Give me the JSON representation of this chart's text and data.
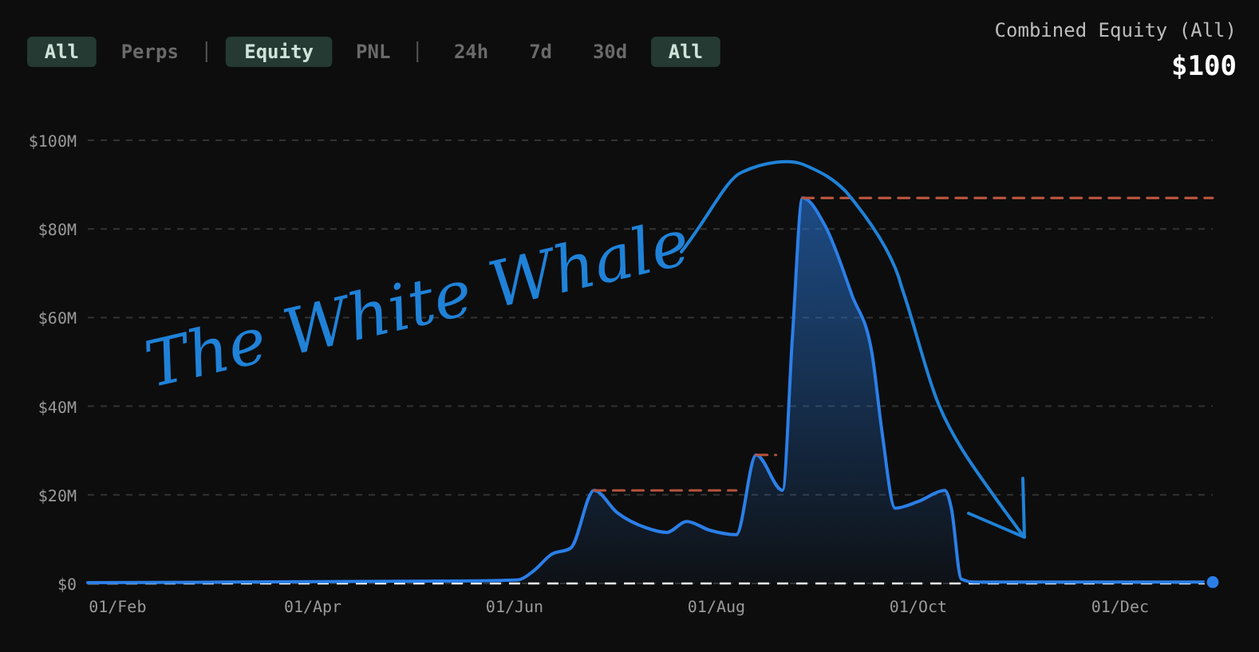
{
  "chart_data": {
    "type": "area",
    "title": "Combined Equity (All)",
    "subtitle": "$100",
    "annotations": [
      "All",
      "Perps",
      "Equity",
      "PNL",
      "24h",
      "7d",
      "30d",
      "All",
      "The White Whale"
    ],
    "xlim": [
      "--01-23",
      "--12-29"
    ],
    "xticks": [
      {
        "value": "--02-01",
        "label": "01/Feb"
      },
      {
        "value": "--04-01",
        "label": "01/Apr"
      },
      {
        "value": "--06-01",
        "label": "01/Jun"
      },
      {
        "value": "--08-01",
        "label": "01/Aug"
      },
      {
        "value": "--10-01",
        "label": "01/Oct"
      },
      {
        "value": "--12-01",
        "label": "01/Dec"
      }
    ],
    "ylim": [
      0,
      100
    ],
    "yticks": [
      {
        "value": 0,
        "label": "$0"
      },
      {
        "value": 20,
        "label": "$20M"
      },
      {
        "value": 40,
        "label": "$40M"
      },
      {
        "value": 60,
        "label": "$60M"
      },
      {
        "value": 80,
        "label": "$80M"
      },
      {
        "value": 100,
        "label": "$100M"
      }
    ],
    "grid": "y",
    "marker": "none",
    "ref_lines": [
      {
        "axis": "y",
        "value": 0,
        "color": "#ffffff",
        "line_style": "dashed"
      }
    ],
    "series": [
      {
        "color": "#2b7fe8",
        "x": [
          "--01-23",
          "--04-03",
          "--05-21",
          "--06-02",
          "--06-07",
          "--06-12",
          "--06-18",
          "--06-25",
          "--07-02",
          "--07-11",
          "--07-17",
          "--07-23",
          "--07-30",
          "--08-07",
          "--08-13",
          "--08-21",
          "--08-24",
          "--08-27",
          "--09-03",
          "--09-11",
          "--09-17",
          "--09-20",
          "--09-24",
          "--10-01",
          "--10-09",
          "--10-11",
          "--10-14",
          "--10-18",
          "--12-29"
        ],
        "values": [
          0.2,
          0.4,
          0.6,
          0.8,
          3,
          6.5,
          8,
          21,
          16,
          12.5,
          11.5,
          14,
          12,
          11,
          29,
          21,
          56,
          87,
          80.5,
          65,
          52,
          34.5,
          17,
          18.5,
          21,
          17,
          1,
          0.3,
          0.3
        ]
      },
      {
        "type": "line",
        "color": "#b5533c",
        "line_style": "dashed",
        "x": [
          "--06-25",
          "--08-07"
        ],
        "values": [
          21,
          21
        ]
      },
      {
        "type": "line",
        "color": "#b5533c",
        "line_style": "dashed",
        "x": [
          "--08-13",
          "--08-19"
        ],
        "values": [
          29,
          29
        ]
      },
      {
        "type": "line",
        "color": "#b5533c",
        "line_style": "dashed",
        "x": [
          "--08-27",
          "--12-29"
        ],
        "values": [
          87,
          87
        ]
      },
      {
        "type": "scatter",
        "color": "#2b7fe8",
        "marker": "circle",
        "x": [
          "--12-29"
        ],
        "values": [
          0.3
        ]
      }
    ]
  }
}
